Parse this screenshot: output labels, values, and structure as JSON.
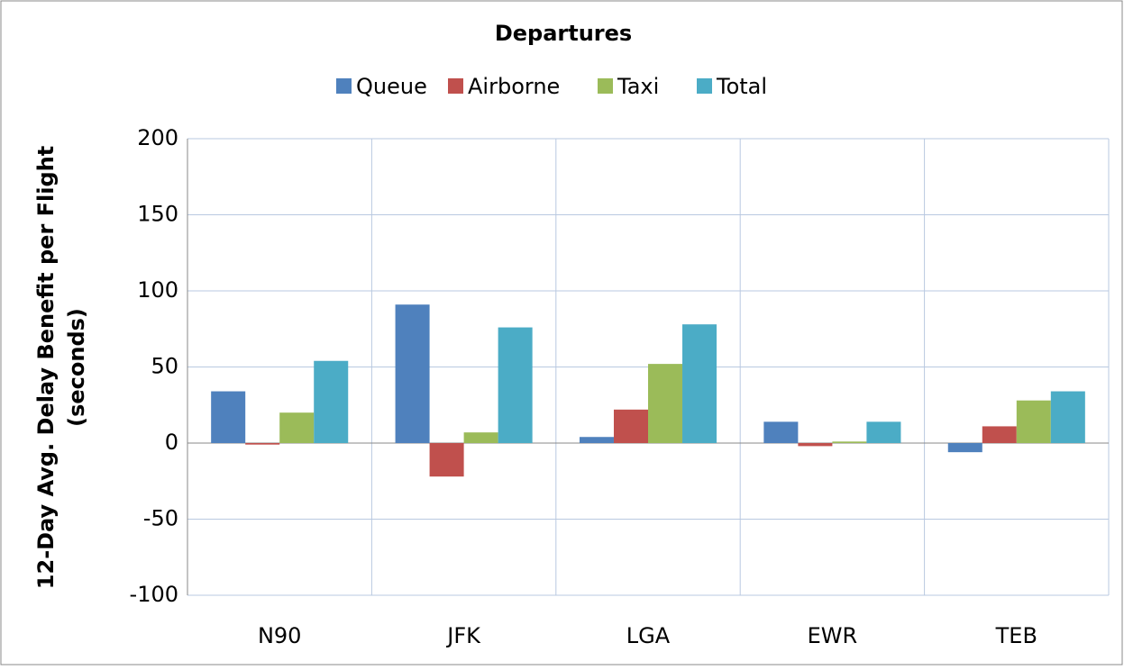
{
  "chart_data": {
    "type": "bar",
    "title": "Departures",
    "ylabel": [
      "12-Day Avg. Delay Benefit per Flight",
      "(seconds)"
    ],
    "categories": [
      "N90",
      "JFK",
      "LGA",
      "EWR",
      "TEB"
    ],
    "series": [
      {
        "name": "Queue",
        "color": "#4f81bd",
        "values": [
          34,
          91,
          4,
          14,
          -6
        ]
      },
      {
        "name": "Airborne",
        "color": "#c0504d",
        "values": [
          -1,
          -22,
          22,
          -2,
          11
        ]
      },
      {
        "name": "Taxi",
        "color": "#9bbb59",
        "values": [
          20,
          7,
          52,
          1,
          28
        ]
      },
      {
        "name": "Total",
        "color": "#4bacc6",
        "values": [
          54,
          76,
          78,
          14,
          34
        ]
      }
    ],
    "ylim": [
      -100,
      200
    ],
    "yticks": [
      -100,
      -50,
      0,
      50,
      100,
      150,
      200
    ],
    "grid": true,
    "legend": "top"
  }
}
